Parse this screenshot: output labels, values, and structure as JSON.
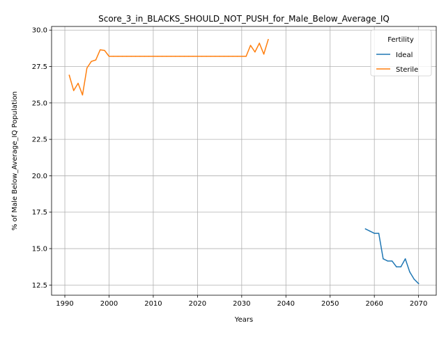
{
  "chart_data": {
    "type": "line",
    "title": "Score_3_in_BLACKS_SHOULD_NOT_PUSH_for_Male_Below_Average_IQ",
    "xlabel": "Years",
    "ylabel": "% of Male Below_Average_IQ Population",
    "xlim": [
      1987,
      2074
    ],
    "ylim": [
      11.8,
      30.25
    ],
    "xticks": [
      1990,
      2000,
      2010,
      2020,
      2030,
      2040,
      2050,
      2060,
      2070
    ],
    "yticks": [
      12.5,
      15.0,
      17.5,
      20.0,
      22.5,
      25.0,
      27.5,
      30.0
    ],
    "xtick_labels": [
      "1990",
      "2000",
      "2010",
      "2020",
      "2030",
      "2040",
      "2050",
      "2060",
      "2070"
    ],
    "ytick_labels": [
      "12.5",
      "15.0",
      "17.5",
      "20.0",
      "22.5",
      "25.0",
      "27.5",
      "30.0"
    ],
    "grid": true,
    "legend": {
      "title": "Fertility",
      "placement": "top-right"
    },
    "series": [
      {
        "name": "Ideal",
        "color": "#1f77b4",
        "x": [
          2058,
          2059,
          2060,
          2061,
          2062,
          2063,
          2064,
          2065,
          2066,
          2067,
          2068,
          2069,
          2070
        ],
        "y": [
          16.35,
          16.2,
          16.05,
          16.05,
          14.3,
          14.15,
          14.15,
          13.75,
          13.75,
          14.3,
          13.4,
          12.9,
          12.6
        ]
      },
      {
        "name": "Sterile",
        "color": "#ff7f0e",
        "x": [
          1991,
          1992,
          1993,
          1994,
          1995,
          1996,
          1997,
          1998,
          1999,
          2000,
          2001,
          2002,
          2003,
          2004,
          2005,
          2006,
          2007,
          2008,
          2009,
          2010,
          2011,
          2012,
          2013,
          2014,
          2015,
          2016,
          2017,
          2018,
          2019,
          2020,
          2021,
          2022,
          2023,
          2024,
          2025,
          2026,
          2027,
          2028,
          2029,
          2030,
          2031,
          2032,
          2033,
          2034,
          2035,
          2036
        ],
        "y": [
          26.9,
          25.85,
          26.35,
          25.55,
          27.4,
          27.85,
          27.95,
          28.65,
          28.6,
          28.2,
          28.2,
          28.2,
          28.2,
          28.2,
          28.2,
          28.2,
          28.2,
          28.2,
          28.2,
          28.2,
          28.2,
          28.2,
          28.2,
          28.2,
          28.2,
          28.2,
          28.2,
          28.2,
          28.2,
          28.2,
          28.2,
          28.2,
          28.2,
          28.2,
          28.2,
          28.2,
          28.2,
          28.2,
          28.2,
          28.2,
          28.2,
          28.95,
          28.5,
          29.1,
          28.35,
          29.35
        ]
      }
    ]
  }
}
